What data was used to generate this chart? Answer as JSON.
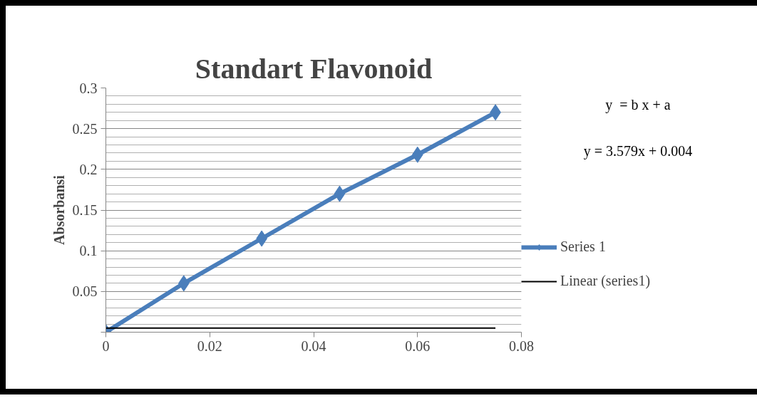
{
  "chart_data": {
    "type": "line",
    "title": "Standart Flavonoid",
    "ylabel": "Absorbansi",
    "x": [
      0,
      0.015,
      0.03,
      0.045,
      0.06,
      0.075
    ],
    "series": [
      {
        "name": "Series 1",
        "color": "#4a7ebb",
        "values": [
          0,
          0.06,
          0.115,
          0.17,
          0.218,
          0.27
        ],
        "marker": "diamond",
        "line_style": "solid"
      },
      {
        "name": "Linear (series1)",
        "color": "#000000",
        "x": [
          0,
          0.075
        ],
        "values": [
          0.005,
          0.005
        ],
        "marker": "none",
        "line_style": "solid"
      }
    ],
    "xlim": [
      0,
      0.08
    ],
    "xticks": [
      0,
      0.02,
      0.04,
      0.06,
      0.08
    ],
    "ylim": [
      0,
      0.3
    ],
    "yticks": [
      {
        "value": 0,
        "label": null
      },
      0.05,
      0.1,
      0.15,
      0.2,
      0.25,
      0.3
    ],
    "grid": "y",
    "legend": "right",
    "annotations": [
      "y  = b x + a",
      "y = 3.579x + 0.004"
    ]
  }
}
